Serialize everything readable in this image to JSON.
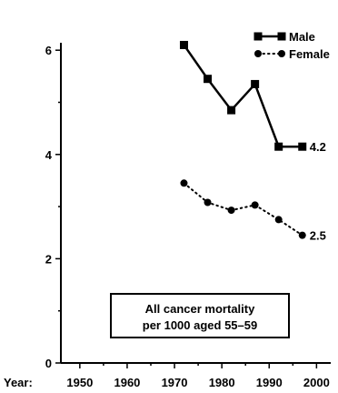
{
  "chart_data": {
    "type": "line",
    "x_prefix": "Year:",
    "x": [
      1972,
      1977,
      1982,
      1987,
      1992,
      1997
    ],
    "xticks": [
      1950,
      1960,
      1970,
      1980,
      1990,
      2000
    ],
    "xlim": [
      1946,
      2003
    ],
    "yticks": [
      0,
      2,
      4,
      6
    ],
    "ylim": [
      0,
      6.3
    ],
    "grid": false,
    "legend_position": "top-right",
    "series": [
      {
        "name": "Male",
        "values": [
          6.1,
          5.45,
          4.85,
          5.35,
          4.15,
          4.15
        ],
        "end_label": "4.2",
        "marker": "square",
        "style": "solid",
        "color": "#000000"
      },
      {
        "name": "Female",
        "values": [
          3.45,
          3.08,
          2.93,
          3.03,
          2.75,
          2.45
        ],
        "end_label": "2.5",
        "marker": "circle",
        "style": "dotted",
        "color": "#000000"
      }
    ],
    "annotation": [
      "All cancer mortality",
      "per 1000 aged 55–59"
    ]
  }
}
